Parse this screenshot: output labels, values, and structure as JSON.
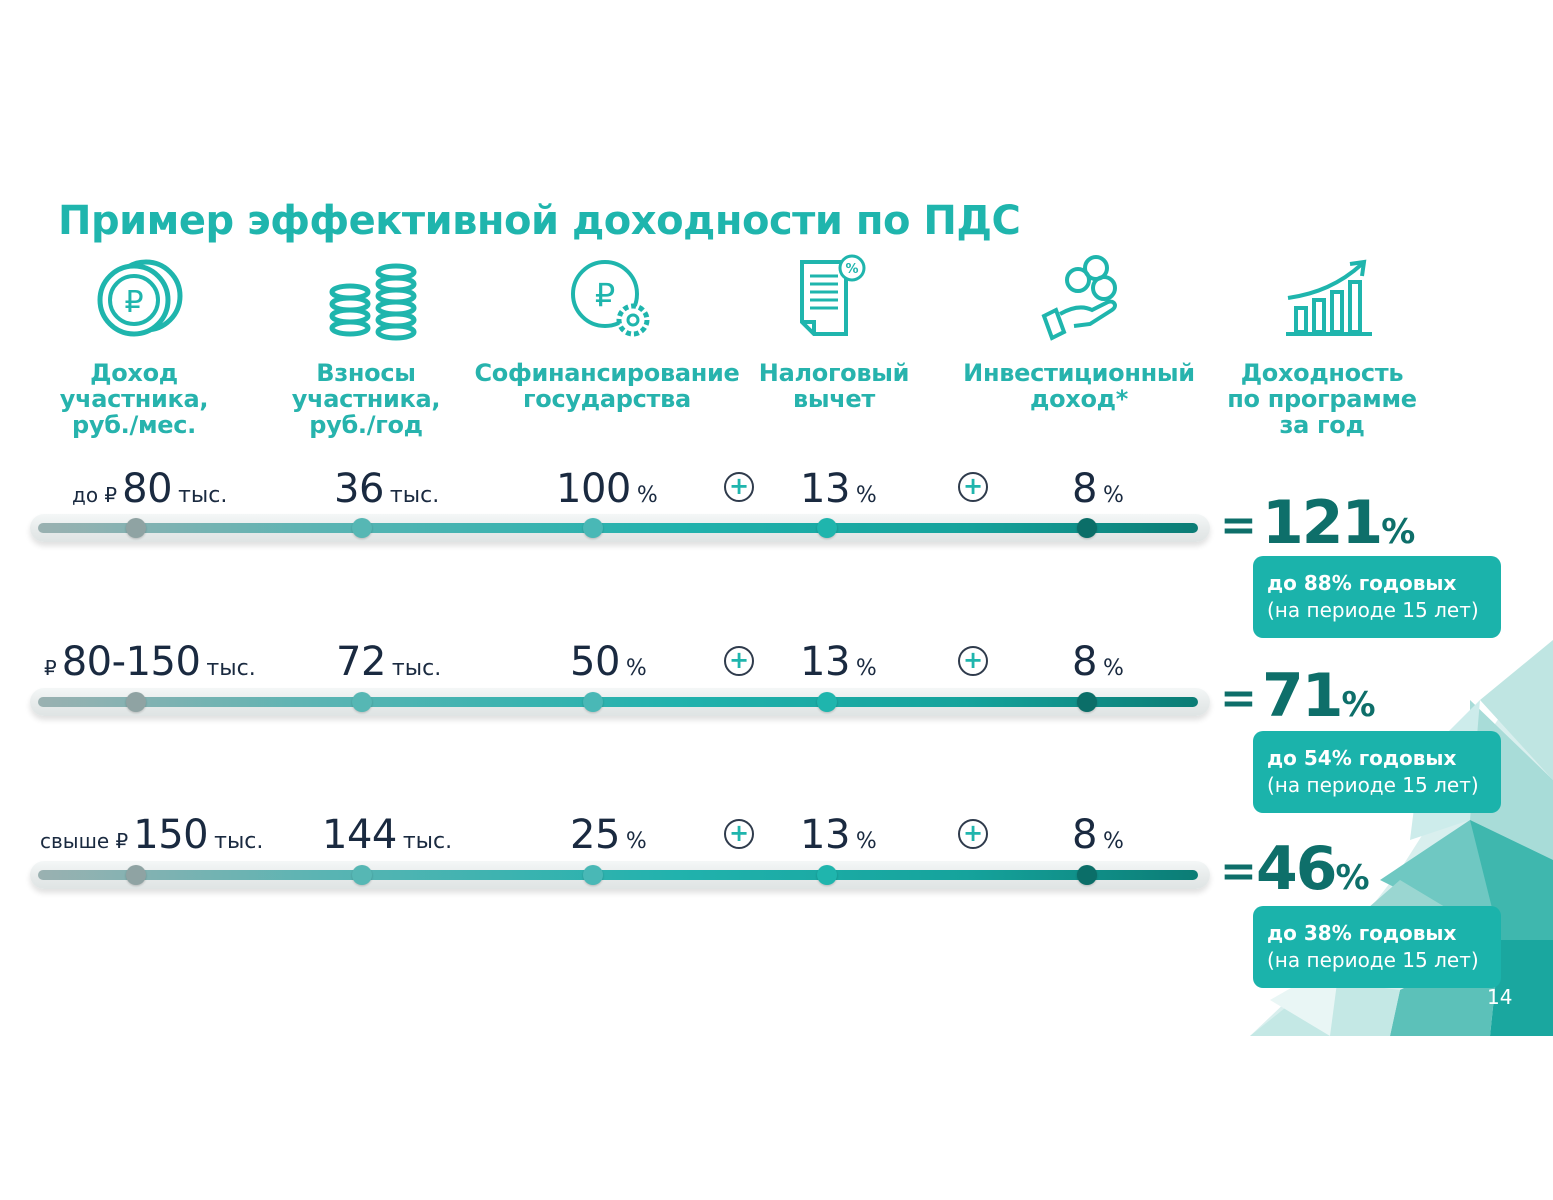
{
  "title": "Пример эффективной доходности по ПДС",
  "columns": [
    {
      "icon": "ruble-coins-icon",
      "label": "Доход\nучастника,\nруб./мес."
    },
    {
      "icon": "coin-stacks-icon",
      "label": "Взносы\nучастника,\nруб./год"
    },
    {
      "icon": "ruble-gear-icon",
      "label": "Софинансирование\nгосударства"
    },
    {
      "icon": "tax-document-percent-icon",
      "label": "Налоговый\nвычет"
    },
    {
      "icon": "hand-coins-icon",
      "label": "Инвестиционный\nдоход*"
    },
    {
      "icon": "growth-chart-icon",
      "label": "Доходность\nпо программе\nза год"
    }
  ],
  "rows": [
    {
      "income_prefix": "до ₽",
      "income": "80",
      "income_unit": "тыс.",
      "contrib": "36",
      "contrib_unit": "тыс.",
      "cofin": "100",
      "cofin_unit": "%",
      "tax": "13",
      "tax_unit": "%",
      "invest": "8",
      "invest_unit": "%",
      "plus": "+",
      "eq": "=",
      "total": "121",
      "total_unit": "%",
      "badge_line1": "до 88% годовых",
      "badge_line2": "(на периоде 15 лет)"
    },
    {
      "income_prefix": "₽",
      "income": "80-150",
      "income_unit": "тыс.",
      "contrib": "72",
      "contrib_unit": "тыс.",
      "cofin": "50",
      "cofin_unit": "%",
      "tax": "13",
      "tax_unit": "%",
      "invest": "8",
      "invest_unit": "%",
      "plus": "+",
      "eq": "=",
      "total": "71",
      "total_unit": "%",
      "badge_line1": "до 54% годовых",
      "badge_line2": "(на периоде 15 лет)"
    },
    {
      "income_prefix": "свыше ₽",
      "income": "150",
      "income_unit": "тыс.",
      "contrib": "144",
      "contrib_unit": "тыс.",
      "cofin": "25",
      "cofin_unit": "%",
      "tax": "13",
      "tax_unit": "%",
      "invest": "8",
      "invest_unit": "%",
      "plus": "+",
      "eq": "=",
      "total": "46",
      "total_unit": "%",
      "badge_line1": "до 38% годовых",
      "badge_line2": "(на периоде 15 лет)"
    }
  ],
  "page_number": "14",
  "colors": {
    "accent": "#1fb5ad",
    "dark_teal": "#0e6f6a",
    "badge": "#1bb3ab",
    "knobs": [
      "#8fa3a3",
      "#56b7b4",
      "#49b8b6",
      "#1fb5ad",
      "#0b6e68"
    ]
  }
}
